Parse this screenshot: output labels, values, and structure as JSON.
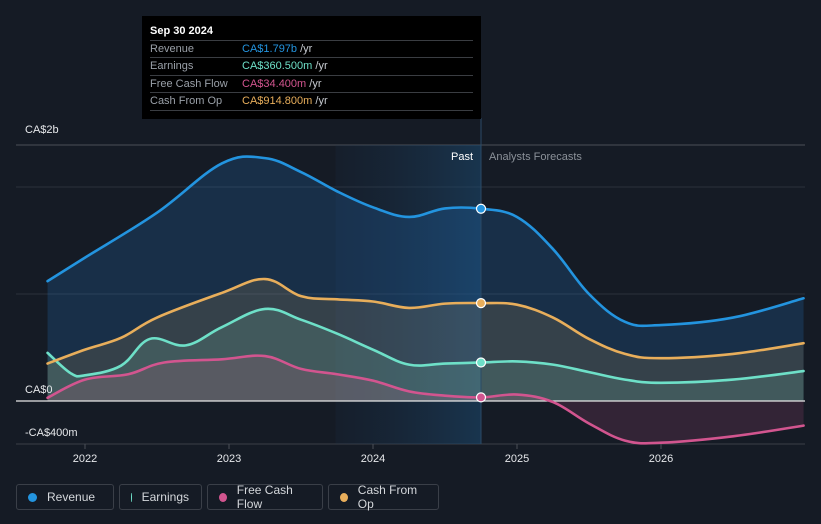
{
  "tooltip": {
    "date": "Sep 30 2024",
    "rows": [
      {
        "label": "Revenue",
        "value": "CA$1.797b",
        "unit": " /yr",
        "color": "#2394df"
      },
      {
        "label": "Earnings",
        "value": "CA$360.500m",
        "unit": " /yr",
        "color": "#6ee0c8"
      },
      {
        "label": "Free Cash Flow",
        "value": "CA$34.400m",
        "unit": " /yr",
        "color": "#d2558f"
      },
      {
        "label": "Cash From Op",
        "value": "CA$914.800m",
        "unit": " /yr",
        "color": "#e8ae5b"
      }
    ]
  },
  "legend": [
    {
      "label": "Revenue",
      "color": "#2394df"
    },
    {
      "label": "Earnings",
      "color": "#6ee0c8"
    },
    {
      "label": "Free Cash Flow",
      "color": "#d2558f"
    },
    {
      "label": "Cash From Op",
      "color": "#e8ae5b"
    }
  ],
  "chart_data": {
    "type": "area",
    "title": "",
    "xlabel": "",
    "ylabel": "",
    "x_ticks": [
      "2022",
      "2023",
      "2024",
      "2025",
      "2026"
    ],
    "y_tick_labels": [
      "CA$2b",
      "CA$0",
      "-CA$400m"
    ],
    "ylim": [
      -400,
      2400
    ],
    "unit": "CA$ millions",
    "divider": {
      "x": 2024.75,
      "past_label": "Past",
      "forecast_label": "Analysts Forecasts"
    },
    "highlight_x": 2024.75,
    "series": [
      {
        "name": "Revenue",
        "color": "#2394df",
        "x": [
          2021.74,
          2022.0,
          2022.5,
          2022.95,
          2023.25,
          2023.5,
          2023.75,
          2024.0,
          2024.25,
          2024.5,
          2024.75,
          2025.0,
          2025.25,
          2025.5,
          2025.75,
          2026.0,
          2026.5,
          2026.99
        ],
        "values": [
          1120,
          1340,
          1760,
          2220,
          2270,
          2140,
          1960,
          1810,
          1720,
          1800,
          1797,
          1720,
          1420,
          1000,
          740,
          710,
          780,
          960
        ]
      },
      {
        "name": "Earnings",
        "color": "#6ee0c8",
        "x": [
          2021.74,
          2021.9,
          2022.0,
          2022.25,
          2022.45,
          2022.7,
          2022.95,
          2023.25,
          2023.5,
          2023.75,
          2024.0,
          2024.25,
          2024.5,
          2024.75,
          2025.0,
          2025.25,
          2025.5,
          2025.75,
          2026.0,
          2026.5,
          2026.99
        ],
        "values": [
          450,
          260,
          240,
          330,
          580,
          520,
          690,
          860,
          760,
          630,
          480,
          340,
          350,
          360,
          370,
          340,
          270,
          200,
          170,
          200,
          280
        ]
      },
      {
        "name": "Free Cash Flow",
        "color": "#d2558f",
        "x": [
          2021.74,
          2022.0,
          2022.3,
          2022.55,
          2022.95,
          2023.25,
          2023.5,
          2023.75,
          2024.0,
          2024.25,
          2024.5,
          2024.75,
          2025.0,
          2025.25,
          2025.5,
          2025.75,
          2026.0,
          2026.5,
          2026.99
        ],
        "values": [
          30,
          200,
          250,
          360,
          390,
          420,
          300,
          250,
          190,
          90,
          50,
          34,
          60,
          -10,
          -210,
          -370,
          -390,
          -330,
          -230
        ]
      },
      {
        "name": "Cash From Op",
        "color": "#e8ae5b",
        "x": [
          2021.74,
          2022.0,
          2022.25,
          2022.5,
          2022.95,
          2023.25,
          2023.5,
          2023.75,
          2024.0,
          2024.25,
          2024.5,
          2024.75,
          2025.0,
          2025.25,
          2025.5,
          2025.75,
          2026.0,
          2026.5,
          2026.99
        ],
        "values": [
          350,
          480,
          590,
          780,
          1010,
          1140,
          980,
          950,
          930,
          870,
          910,
          915,
          900,
          780,
          580,
          440,
          400,
          440,
          540
        ]
      }
    ]
  }
}
